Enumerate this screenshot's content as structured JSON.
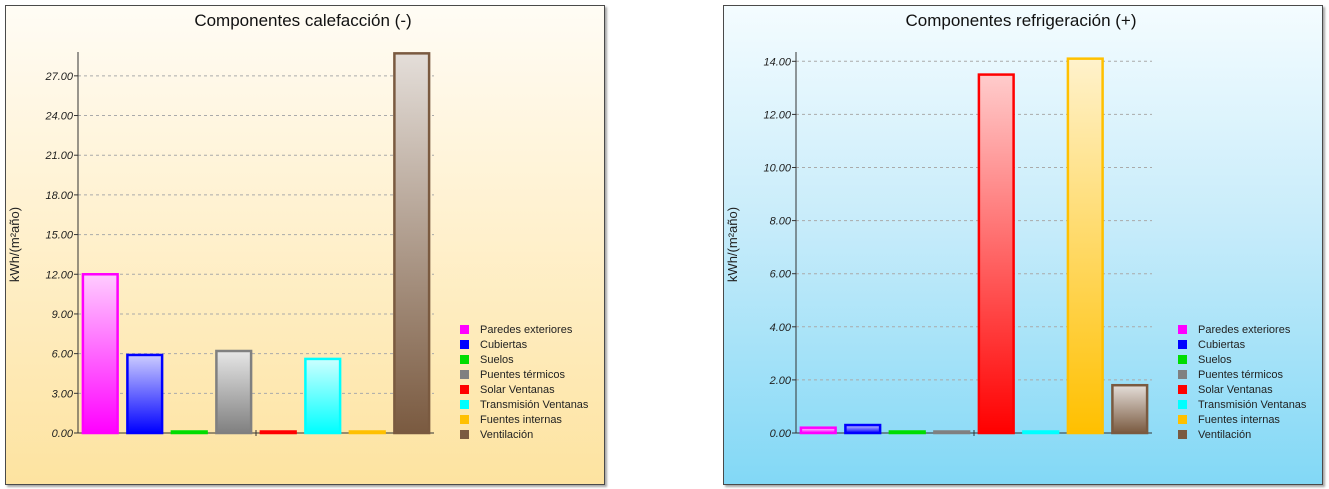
{
  "chart_data": [
    {
      "type": "bar",
      "title": "Componentes calefacción (-)",
      "ylabel": "kWh/(m²año)",
      "ylim": [
        0,
        28.5
      ],
      "yticks": [
        0,
        3,
        6,
        9,
        12,
        15,
        18,
        21,
        24,
        27
      ],
      "tick_decimals": 2,
      "grid": true,
      "legend_position": "bottom-right",
      "categories": [
        "Paredes exteriores",
        "Cubiertas",
        "Suelos",
        "Puentes térmicos",
        "Solar Ventanas",
        "Transmisión Ventanas",
        "Fuentes internas",
        "Ventilación"
      ],
      "values": [
        12.0,
        5.9,
        0.0,
        6.2,
        0.0,
        5.6,
        0.0,
        28.7
      ],
      "colors": [
        "#ff00ff",
        "#0000ff",
        "#00dd00",
        "#808080",
        "#ff0000",
        "#00ffff",
        "#ffc000",
        "#7a5a40"
      ],
      "background": "#ffefc8"
    },
    {
      "type": "bar",
      "title": "Componentes refrigeración (+)",
      "ylabel": "kWh/(m²año)",
      "ylim": [
        0,
        14.2
      ],
      "yticks": [
        0,
        2,
        4,
        6,
        8,
        10,
        12,
        14
      ],
      "tick_decimals": 2,
      "grid": true,
      "legend_position": "bottom-right",
      "categories": [
        "Paredes exteriores",
        "Cubiertas",
        "Suelos",
        "Puentes térmicos",
        "Solar Ventanas",
        "Transmisión Ventanas",
        "Fuentes internas",
        "Ventilación"
      ],
      "values": [
        0.2,
        0.3,
        0.0,
        0.0,
        13.5,
        0.05,
        14.1,
        1.8
      ],
      "colors": [
        "#ff00ff",
        "#0000ff",
        "#00dd00",
        "#808080",
        "#ff0000",
        "#00ffff",
        "#ffc000",
        "#7a5a40"
      ],
      "background": "#c6ecfa"
    }
  ]
}
